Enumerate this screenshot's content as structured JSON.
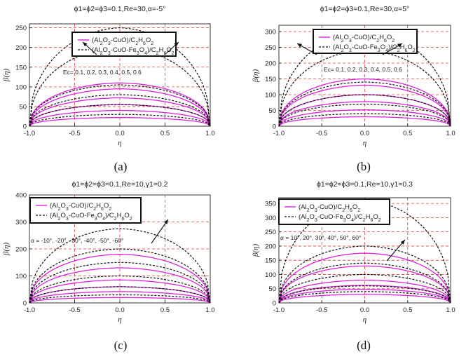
{
  "colors": {
    "pink": "#dd22dd",
    "black": "#111111",
    "grid": "#e23b3b"
  },
  "chart_data": [
    {
      "type": "line",
      "title": "ϕ1=ϕ2=ϕ3=0.1,Re=30,α=-5°",
      "xlabel": "η",
      "ylabel": "β(η)",
      "xlim": [
        -1.0,
        1.0
      ],
      "ylim": [
        0,
        260
      ],
      "xticks": [
        -1.0,
        -0.5,
        0.0,
        0.5,
        1.0
      ],
      "yticks": [
        0,
        50,
        100,
        150,
        200,
        250
      ],
      "xtick_labels": [
        "-1.0",
        "-0.5",
        "0.0",
        "0.5",
        "1.0"
      ],
      "ytick_labels": [
        "0",
        "50",
        "100",
        "150",
        "200",
        "250"
      ],
      "legend": [
        "(Al2O3-CuO)/C2H6O2",
        "(Al2O3-CuO-Fe3O4)/C2H6O2"
      ],
      "annotation": "Ec= 0.1, 0.2, 0.3, 0.4, 0.5, 0.6",
      "caption": "(a)",
      "series_peaks": {
        "(Al2O3-CuO)/C2H6O2": [
          22,
          40,
          55,
          72,
          95,
          110
        ],
        "(Al2O3-CuO-Fe3O4)/C2H6O2": [
          30,
          55,
          80,
          105,
          200,
          250
        ]
      }
    },
    {
      "type": "line",
      "title": "ϕ1=ϕ2=ϕ3=0.1,Re=30,α=5°",
      "xlabel": "η",
      "ylabel": "β(η)",
      "xlim": [
        -1.0,
        1.0
      ],
      "ylim": [
        0,
        320
      ],
      "xticks": [
        -1.0,
        -0.5,
        0.0,
        0.5,
        1.0
      ],
      "yticks": [
        0,
        50,
        100,
        150,
        200,
        250,
        300
      ],
      "xtick_labels": [
        "-1.0",
        "-0.5",
        "0.0",
        "0.5",
        "1.0"
      ],
      "ytick_labels": [
        "0",
        "50",
        "100",
        "150",
        "200",
        "250",
        "300"
      ],
      "legend": [
        "(Al2O3-CuO)/C2H6O2",
        "(Al2O3-CuO-Fe3O4)/C2H6O2"
      ],
      "annotation": "Ec= 0.1, 0.2, 0.3, 0.4, 0.5, 0.6",
      "caption": "(b)",
      "series_peaks": {
        "(Al2O3-CuO)/C2H6O2": [
          30,
          52,
          78,
          100,
          130,
          150
        ],
        "(Al2O3-CuO-Fe3O4)/C2H6O2": [
          40,
          70,
          100,
          140,
          240,
          300
        ]
      }
    },
    {
      "type": "line",
      "title": "ϕ1=ϕ2=ϕ3=0.1,Re=10,γ1=0.2",
      "xlabel": "η",
      "ylabel": "β(η)",
      "xlim": [
        -1.0,
        1.0
      ],
      "ylim": [
        0,
        400
      ],
      "xticks": [
        -1.0,
        -0.5,
        0.0,
        0.5,
        1.0
      ],
      "yticks": [
        0,
        100,
        200,
        300,
        400
      ],
      "xtick_labels": [
        "-1.0",
        "-0.5",
        "0.0",
        "0.5",
        "1.0"
      ],
      "ytick_labels": [
        "0",
        "100",
        "200",
        "300",
        "400"
      ],
      "legend": [
        "(Al2O3-CuO)/C2H6O2",
        "(Al2O3-CuO-Fe3O4)/C2H6O2"
      ],
      "annotation": "α = -10°, -20°, -30°, -40°, -50°, -60°",
      "caption": "(c)",
      "series_peaks": {
        "(Al2O3-CuO)/C2H6O2": [
          20,
          42,
          60,
          85,
          130,
          180
        ],
        "(Al2O3-CuO-Fe3O4)/C2H6O2": [
          30,
          60,
          100,
          150,
          200,
          275
        ]
      }
    },
    {
      "type": "line",
      "title": "ϕ1=ϕ2=ϕ3=0.1,Re=10,γ1=0.3",
      "xlabel": "η",
      "ylabel": "β(η)",
      "xlim": [
        -1.0,
        1.0
      ],
      "ylim": [
        0,
        370
      ],
      "xticks": [
        -1.0,
        -0.5,
        0.0,
        0.5,
        1.0
      ],
      "yticks": [
        0,
        50,
        100,
        150,
        200,
        250,
        300,
        350
      ],
      "xtick_labels": [
        "-1.0",
        "-0.5",
        "0.0",
        "0.5",
        "1.0"
      ],
      "ytick_labels": [
        "0",
        "50",
        "100",
        "150",
        "200",
        "250",
        "300",
        "350"
      ],
      "legend": [
        "(Al2O3-CuO)/C2H6O2",
        "(Al2O3-CuO-Fe3O4)/C2H6O2"
      ],
      "annotation": "α = 10°, 20°, 30°, 40°, 50°, 60°",
      "caption": "(d)",
      "series_peaks": {
        "(Al2O3-CuO)/C2H6O2": [
          30,
          48,
          62,
          80,
          130,
          175
        ],
        "(Al2O3-CuO-Fe3O4)/C2H6O2": [
          40,
          60,
          100,
          140,
          200,
          360
        ]
      }
    }
  ]
}
